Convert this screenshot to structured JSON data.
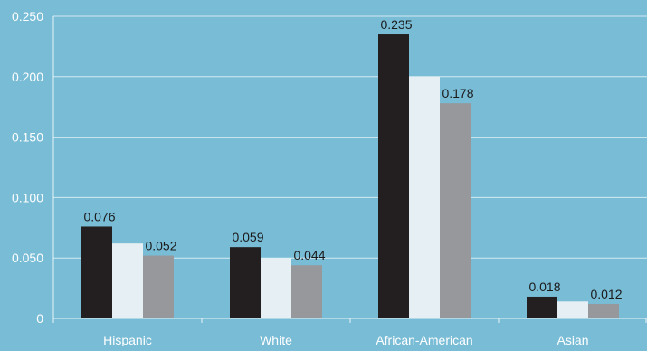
{
  "chart_data": {
    "type": "bar",
    "categories": [
      "Hispanic",
      "White",
      "African-American",
      "Asian"
    ],
    "series": [
      {
        "color": "#231f20",
        "values": [
          0.076,
          0.059,
          0.235,
          0.018
        ]
      },
      {
        "color": "#e6f0f4",
        "values": [
          0.062,
          0.05,
          0.2,
          0.014
        ]
      },
      {
        "color": "#96989b",
        "values": [
          0.052,
          0.044,
          0.178,
          0.012
        ]
      }
    ],
    "data_labels": [
      {
        "series": 0,
        "labels": [
          "0.076",
          "0.059",
          "0.235",
          "0.018"
        ]
      },
      {
        "series": 2,
        "labels": [
          "0.052",
          "0.044",
          "0.178",
          "0.012"
        ]
      }
    ],
    "y_ticks": [
      {
        "value": 0,
        "label": "0"
      },
      {
        "value": 0.05,
        "label": "0.050"
      },
      {
        "value": 0.1,
        "label": "0.100"
      },
      {
        "value": 0.15,
        "label": "0.150"
      },
      {
        "value": 0.2,
        "label": "0.200"
      },
      {
        "value": 0.25,
        "label": "0.250"
      }
    ],
    "ylim": [
      0,
      0.25
    ],
    "grid": true,
    "title": "",
    "xlabel": "",
    "ylabel": "",
    "colors": {
      "background": "#79bcd6",
      "gridline": "#d4eaf2",
      "axis": "#e8f3f7",
      "text": "#ffffff",
      "label": "#1a1a1a"
    }
  }
}
